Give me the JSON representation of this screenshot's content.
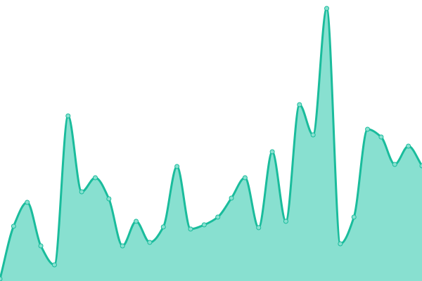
{
  "chart_data": {
    "type": "area",
    "title": "",
    "xlabel": "",
    "ylabel": "",
    "x": [
      0,
      1,
      2,
      3,
      4,
      5,
      6,
      7,
      8,
      9,
      10,
      11,
      12,
      13,
      14,
      15,
      16,
      17,
      18,
      19,
      20,
      21,
      22,
      23,
      24,
      25,
      26,
      27,
      28,
      29,
      30,
      31
    ],
    "values": [
      3,
      78,
      112,
      50,
      23,
      235,
      127,
      147,
      117,
      50,
      85,
      55,
      77,
      163,
      74,
      80,
      91,
      118,
      147,
      76,
      184,
      85,
      251,
      208,
      388,
      53,
      91,
      216,
      205,
      166,
      192,
      164
    ],
    "ylim": [
      0,
      400
    ],
    "grid": false,
    "axes_visible": false,
    "markers": true,
    "smooth": true,
    "colors": {
      "line": "#1abc9c",
      "fill": "#88e0d0",
      "marker_fill": "#88e0d0",
      "marker_stroke": "#1abc9c"
    }
  }
}
